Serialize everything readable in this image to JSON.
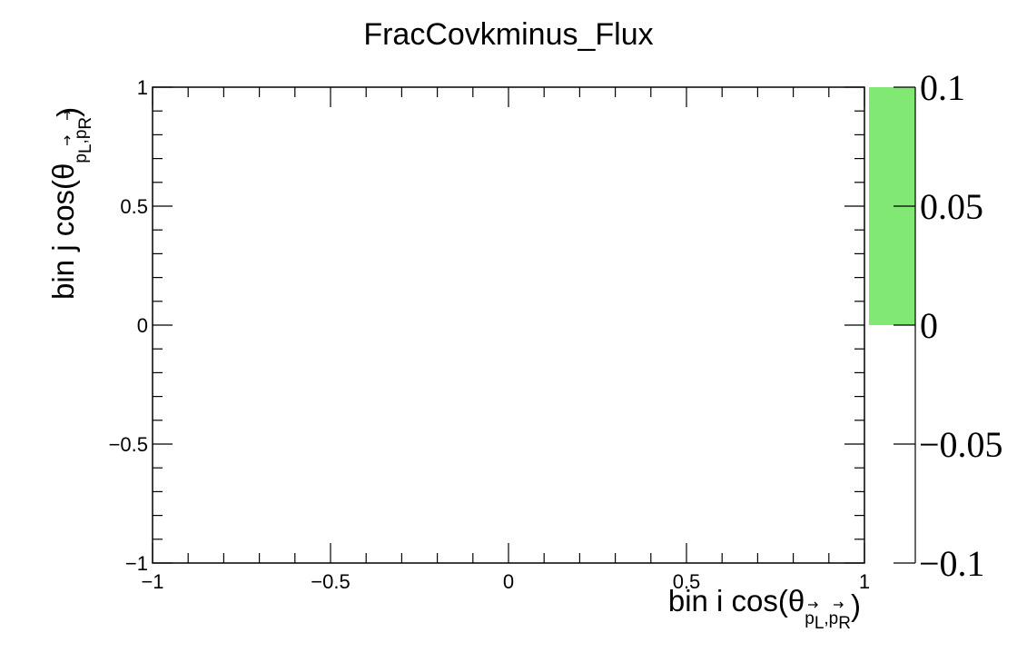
{
  "chart_data": {
    "type": "heatmap",
    "title": "FracCovkminus_Flux",
    "xlabel": "bin i cos(θ_{p_L,p_R})",
    "ylabel": "bin j cos(θ_{p_L,p_R})",
    "xlim": [
      -1,
      1
    ],
    "ylim": [
      -1,
      1
    ],
    "x_ticks": [
      "−1",
      "−0.5",
      "0",
      "0.5",
      "1"
    ],
    "y_ticks": [
      "−1",
      "−0.5",
      "0",
      "0.5",
      "1"
    ],
    "x_tick_values": [
      -1,
      -0.5,
      0,
      0.5,
      1
    ],
    "y_tick_values": [
      -1,
      -0.5,
      0,
      0.5,
      1
    ],
    "z_range": [
      -0.1,
      0.1
    ],
    "z_ticks": [
      "−0.1",
      "−0.05",
      "0",
      "0.05",
      "0.1"
    ],
    "z_tick_values": [
      -0.1,
      -0.05,
      0,
      0.05,
      0.1
    ],
    "colorbar_fill": {
      "from": 0,
      "to": 0.1,
      "color": "#82e874"
    },
    "cells": [],
    "grid": false
  }
}
